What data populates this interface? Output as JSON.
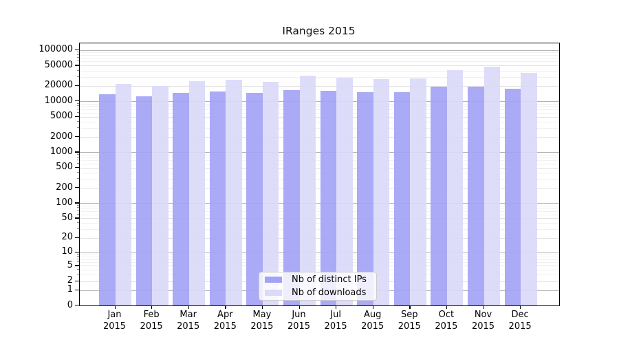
{
  "chart_data": {
    "type": "bar",
    "title": "IRanges 2015",
    "year": "2015",
    "categories": [
      "Jan",
      "Feb",
      "Mar",
      "Apr",
      "May",
      "Jun",
      "Jul",
      "Aug",
      "Sep",
      "Oct",
      "Nov",
      "Dec"
    ],
    "series": [
      {
        "name": "Nb of distinct IPs",
        "color": "#a3a3f5",
        "values": [
          13900,
          12400,
          14800,
          15500,
          14400,
          16300,
          15800,
          15000,
          15300,
          19500,
          19600,
          17400
        ]
      },
      {
        "name": "Nb of downloads",
        "color": "#dadaf9",
        "values": [
          22100,
          20000,
          24900,
          26500,
          24200,
          32200,
          28500,
          27400,
          28200,
          40400,
          47200,
          35600
        ]
      }
    ],
    "xlabel": "",
    "ylabel": "",
    "y_ticks": [
      0,
      1,
      2,
      5,
      10,
      20,
      50,
      100,
      200,
      500,
      1000,
      2000,
      5000,
      10000,
      20000,
      50000,
      100000
    ],
    "y_scale": "log10(1+x)",
    "ylim": [
      0,
      136000
    ],
    "grid": "on",
    "legend_position": "lower center"
  }
}
